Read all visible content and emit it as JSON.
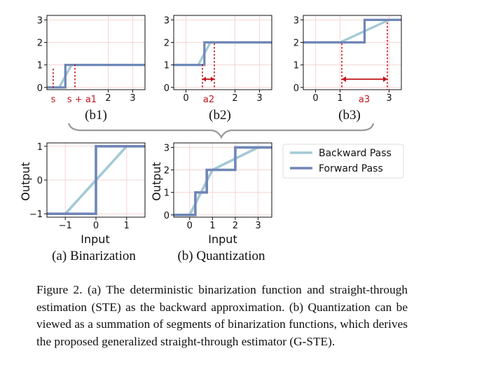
{
  "figure": {
    "legend": {
      "backward": "Backward Pass",
      "forward": "Forward Pass"
    },
    "colors": {
      "backward": "#a3c9d6",
      "forward": "#6f86b6",
      "grid": "#f6d4d4",
      "annotation": "#c0151c"
    },
    "panel_labels": {
      "b1": "(b1)",
      "b2": "(b2)",
      "b3": "(b3)",
      "a": "(a) Binarization",
      "b": "(b) Quantization"
    },
    "axis_labels": {
      "a_x": "Input",
      "a_y": "Output",
      "b_x": "Input",
      "b_y": "Output"
    },
    "annotations": {
      "b1_s": "s",
      "b1_sa1": "s + a1",
      "b2_a2": "a2",
      "b3_a3": "a3"
    },
    "ticks": {
      "b1_y": [
        "3",
        "2",
        "1",
        "0"
      ],
      "b1_x": [
        "2",
        "3"
      ],
      "b2_y": [
        "3",
        "2",
        "1",
        "0"
      ],
      "b2_x": [
        "0",
        "2",
        "3"
      ],
      "b3_y": [
        "3",
        "2",
        "1",
        "0"
      ],
      "b3_x": [
        "0",
        "1",
        "3"
      ],
      "a_y": [
        "1",
        "0",
        "−1"
      ],
      "a_x": [
        "−1",
        "0",
        "1"
      ],
      "b_y": [
        "3",
        "2",
        "1",
        "0"
      ],
      "b_x": [
        "0",
        "1",
        "2",
        "3"
      ]
    }
  },
  "chart_data": [
    {
      "type": "line",
      "panel": "(b1)",
      "xlim": [
        -0.5,
        3.5
      ],
      "ylim": [
        -0.1,
        3.2
      ],
      "series": [
        {
          "name": "Backward Pass",
          "x": [
            -0.5,
            0,
            0.5,
            3.5
          ],
          "y": [
            0,
            0,
            1,
            1
          ]
        },
        {
          "name": "Forward Pass",
          "x": [
            -0.5,
            0.25,
            0.25,
            3.5
          ],
          "y": [
            0,
            0,
            1,
            1
          ]
        }
      ]
    },
    {
      "type": "line",
      "panel": "(b2)",
      "xlim": [
        -0.5,
        3.5
      ],
      "ylim": [
        -0.1,
        3.2
      ],
      "series": [
        {
          "name": "Backward Pass",
          "x": [
            -0.5,
            0.5,
            1.0,
            3.5
          ],
          "y": [
            1,
            1,
            2,
            2
          ]
        },
        {
          "name": "Forward Pass",
          "x": [
            -0.5,
            0.75,
            0.75,
            3.5
          ],
          "y": [
            1,
            1,
            2,
            2
          ]
        }
      ]
    },
    {
      "type": "line",
      "panel": "(b3)",
      "xlim": [
        -0.5,
        3.5
      ],
      "ylim": [
        -0.1,
        3.2
      ],
      "series": [
        {
          "name": "Backward Pass",
          "x": [
            -0.5,
            1.0,
            3.0,
            3.5
          ],
          "y": [
            2,
            2,
            3,
            3
          ]
        },
        {
          "name": "Forward Pass",
          "x": [
            -0.5,
            2.0,
            2.0,
            3.5
          ],
          "y": [
            2,
            2,
            3,
            3
          ]
        }
      ]
    },
    {
      "type": "line",
      "panel": "(a) Binarization",
      "xlim": [
        -1.6,
        1.6
      ],
      "ylim": [
        -1.1,
        1.1
      ],
      "xlabel": "Input",
      "ylabel": "Output",
      "series": [
        {
          "name": "Backward Pass",
          "x": [
            -1.6,
            -1,
            1,
            1.6
          ],
          "y": [
            -1,
            -1,
            1,
            1
          ]
        },
        {
          "name": "Forward Pass",
          "x": [
            -1.6,
            0,
            0,
            1.6
          ],
          "y": [
            -1,
            -1,
            1,
            1
          ]
        }
      ]
    },
    {
      "type": "line",
      "panel": "(b) Quantization",
      "xlim": [
        -0.7,
        3.6
      ],
      "ylim": [
        -0.1,
        3.2
      ],
      "xlabel": "Input",
      "ylabel": "Output",
      "series": [
        {
          "name": "Backward Pass",
          "x": [
            -0.7,
            0,
            1,
            3,
            3.6
          ],
          "y": [
            0,
            0,
            2,
            3,
            3
          ]
        },
        {
          "name": "Forward Pass",
          "x": [
            -0.7,
            0.25,
            0.25,
            0.75,
            0.75,
            2,
            2,
            3.6
          ],
          "y": [
            0,
            0,
            1,
            1,
            2,
            2,
            3,
            3
          ]
        }
      ]
    }
  ],
  "caption": "Figure 2. (a) The deterministic binarization function and straight-through estimation (STE) as the backward approximation. (b) Quantization can be viewed as a summation of segments of binarization functions, which derives the proposed generalized straight-through estimator (G-STE)."
}
